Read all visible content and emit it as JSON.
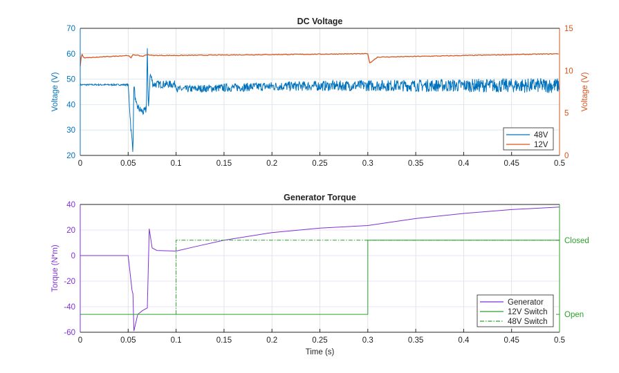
{
  "chart_data": [
    {
      "type": "line",
      "title": "DC Voltage",
      "ylabel": "Voltage (V)",
      "ylabel_right": "Voltage (V)",
      "xlim": [
        0,
        0.5
      ],
      "ylim": [
        20,
        70
      ],
      "ylim_right": [
        0,
        15
      ],
      "grid": true,
      "legend": "bottom-right",
      "xticks": [
        "0",
        "0.05",
        "0.1",
        "0.15",
        "0.2",
        "0.25",
        "0.3",
        "0.35",
        "0.4",
        "0.45",
        "0.5"
      ],
      "yticks": [
        "20",
        "30",
        "40",
        "50",
        "60",
        "70"
      ],
      "yticks_right": [
        "0",
        "5",
        "10",
        "15"
      ],
      "series": [
        {
          "name": "48V",
          "axis": "left",
          "color": "#0072BD",
          "x": [
            0,
            0.002,
            0.05,
            0.053,
            0.055,
            0.056,
            0.058,
            0.062,
            0.066,
            0.069,
            0.07,
            0.071,
            0.073,
            0.076,
            0.1,
            0.101,
            0.2,
            0.3,
            0.4,
            0.5
          ],
          "y": [
            47.8,
            47.8,
            47.8,
            30,
            22,
            48,
            40,
            38,
            37,
            38,
            62,
            38,
            52,
            48,
            48,
            46,
            47.2,
            47.5,
            47.5,
            47.5
          ]
        },
        {
          "name": "12V",
          "axis": "right",
          "color": "#D95319",
          "x": [
            0,
            0.001,
            0.002,
            0.004,
            0.05,
            0.053,
            0.055,
            0.065,
            0.07,
            0.075,
            0.1,
            0.2,
            0.299,
            0.3,
            0.302,
            0.31,
            0.5
          ],
          "y": [
            10.5,
            11.6,
            11.9,
            11.5,
            11.8,
            11.5,
            11.9,
            11.7,
            11.9,
            11.8,
            11.8,
            11.9,
            12.0,
            12.0,
            10.9,
            11.6,
            12.0
          ]
        }
      ]
    },
    {
      "type": "line",
      "title": "Generator Torque",
      "xlabel": "Time (s)",
      "ylabel": "Torque (N*m)",
      "xlim": [
        0,
        0.5
      ],
      "ylim": [
        -60,
        40
      ],
      "grid": true,
      "legend": "bottom-right",
      "xticks": [
        "0",
        "0.05",
        "0.1",
        "0.15",
        "0.2",
        "0.25",
        "0.3",
        "0.35",
        "0.4",
        "0.45",
        "0.5"
      ],
      "yticks": [
        "-60",
        "-40",
        "-20",
        "0",
        "20",
        "40"
      ],
      "yticks_right": [
        "Open",
        "Closed"
      ],
      "series": [
        {
          "name": "Generator",
          "color": "#7E2FD8",
          "style": "solid",
          "x": [
            0,
            0.05,
            0.054,
            0.055,
            0.056,
            0.06,
            0.065,
            0.07,
            0.072,
            0.075,
            0.08,
            0.1,
            0.12,
            0.15,
            0.2,
            0.25,
            0.3,
            0.35,
            0.4,
            0.45,
            0.5
          ],
          "y": [
            0,
            0,
            -27,
            -30,
            -59,
            -46,
            -43,
            -41,
            21,
            6,
            4,
            3.5,
            7,
            12,
            18,
            21.5,
            23.5,
            29,
            33,
            36,
            38
          ]
        },
        {
          "name": "12V Switch",
          "color": "#2CA02C",
          "style": "solid",
          "x": [
            0,
            0.3,
            0.3,
            0.5
          ],
          "y": [
            -46,
            -46,
            12,
            12
          ]
        },
        {
          "name": "48V Switch",
          "color": "#2CA02C",
          "style": "dashdot",
          "x": [
            0.1,
            0.1,
            0.5
          ],
          "y": [
            -46,
            12,
            12
          ]
        }
      ]
    }
  ]
}
